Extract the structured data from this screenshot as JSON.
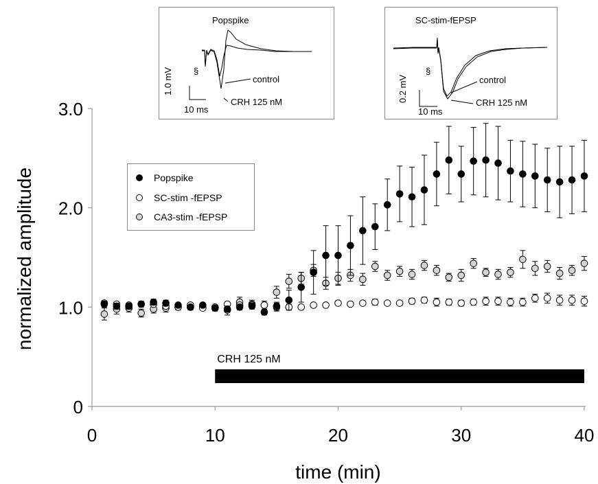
{
  "chart_data": {
    "type": "scatter",
    "ylabel": "normalized amplitude",
    "xlabel": "time (min)",
    "xlim": [
      0,
      40
    ],
    "ylim": [
      0,
      3.0
    ],
    "x_ticks": [
      0,
      10,
      20,
      30,
      40
    ],
    "x_tick_labels": [
      "0",
      "10",
      "20",
      "30",
      "40"
    ],
    "y_ticks": [
      0,
      1.0,
      2.0,
      3.0
    ],
    "y_tick_labels": [
      "0",
      "1.0",
      "2.0",
      "3.0"
    ],
    "grid": false,
    "legend_position": "upper-left",
    "x": [
      1,
      2,
      3,
      4,
      5,
      6,
      7,
      8,
      9,
      10,
      11,
      12,
      13,
      14,
      15,
      16,
      17,
      18,
      19,
      20,
      21,
      22,
      23,
      24,
      25,
      26,
      27,
      28,
      29,
      30,
      31,
      32,
      33,
      34,
      35,
      36,
      37,
      38,
      39,
      40
    ],
    "series": [
      {
        "name": "Popspike",
        "fill": "#000000",
        "values": [
          1.03,
          1.01,
          1.01,
          1.03,
          1.05,
          1.04,
          1.02,
          1.0,
          1.02,
          0.99,
          0.98,
          1.0,
          1.01,
          0.95,
          1.01,
          1.07,
          1.2,
          1.35,
          1.52,
          1.52,
          1.62,
          1.77,
          1.81,
          2.03,
          2.14,
          2.11,
          2.18,
          2.34,
          2.48,
          2.34,
          2.47,
          2.48,
          2.45,
          2.37,
          2.34,
          2.32,
          2.28,
          2.26,
          2.28,
          2.32
        ],
        "errors": [
          0.03,
          0.03,
          0.03,
          0.03,
          0.03,
          0.03,
          0.02,
          0.02,
          0.02,
          0.02,
          0.03,
          0.03,
          0.03,
          0.03,
          0.04,
          0.1,
          0.15,
          0.22,
          0.3,
          0.3,
          0.3,
          0.34,
          0.23,
          0.26,
          0.28,
          0.3,
          0.35,
          0.32,
          0.34,
          0.28,
          0.34,
          0.37,
          0.37,
          0.31,
          0.33,
          0.32,
          0.32,
          0.36,
          0.34,
          0.36
        ]
      },
      {
        "name": "SC-stim -fEPSP",
        "fill": "#ffffff",
        "values": [
          1.04,
          1.03,
          1.02,
          1.03,
          1.03,
          1.01,
          1.0,
          1.02,
          0.99,
          1.0,
          1.03,
          1.02,
          1.02,
          1.02,
          1.0,
          1.0,
          1.0,
          1.02,
          1.02,
          1.04,
          1.03,
          1.04,
          1.05,
          1.04,
          1.04,
          1.06,
          1.07,
          1.05,
          1.05,
          1.04,
          1.05,
          1.06,
          1.06,
          1.05,
          1.05,
          1.09,
          1.09,
          1.07,
          1.07,
          1.06
        ],
        "errors": [
          0.02,
          0.02,
          0.02,
          0.02,
          0.02,
          0.02,
          0.02,
          0.02,
          0.02,
          0.02,
          0.02,
          0.02,
          0.02,
          0.02,
          0.04,
          0.03,
          0.02,
          0.02,
          0.02,
          0.02,
          0.02,
          0.02,
          0.03,
          0.02,
          0.02,
          0.03,
          0.03,
          0.04,
          0.03,
          0.03,
          0.03,
          0.04,
          0.04,
          0.04,
          0.04,
          0.04,
          0.05,
          0.05,
          0.05,
          0.05
        ]
      },
      {
        "name": "CA3-stim -fEPSP",
        "fill": "#d4d4d4",
        "values": [
          0.93,
          0.98,
          0.99,
          0.94,
          0.98,
          0.99,
          1.0,
          1.0,
          1.0,
          0.99,
          0.97,
          1.05,
          1.03,
          1.02,
          1.15,
          1.26,
          1.29,
          1.37,
          1.24,
          1.29,
          1.32,
          1.28,
          1.41,
          1.32,
          1.36,
          1.33,
          1.42,
          1.37,
          1.3,
          1.32,
          1.44,
          1.35,
          1.33,
          1.35,
          1.48,
          1.39,
          1.41,
          1.34,
          1.37,
          1.44
        ],
        "errors": [
          0.06,
          0.05,
          0.04,
          0.04,
          0.04,
          0.04,
          0.03,
          0.03,
          0.03,
          0.03,
          0.05,
          0.05,
          0.04,
          0.04,
          0.06,
          0.07,
          0.06,
          0.06,
          0.06,
          0.06,
          0.06,
          0.06,
          0.05,
          0.05,
          0.05,
          0.05,
          0.05,
          0.05,
          0.04,
          0.06,
          0.05,
          0.04,
          0.05,
          0.05,
          0.09,
          0.07,
          0.06,
          0.06,
          0.05,
          0.07
        ]
      }
    ],
    "bar": {
      "label": "CRH 125 nM",
      "from": 10,
      "to": 40
    }
  },
  "insets": [
    {
      "title": "Popspike",
      "section_mark": "§",
      "label_a": "control",
      "label_b": "CRH 125 nM",
      "v_scale": "1.0 mV",
      "t_scale": "10 ms"
    },
    {
      "title": "SC-stim-fEPSP",
      "section_mark": "§",
      "label_a": "control",
      "label_b": "CRH 125 nM",
      "v_scale": "0.2 mV",
      "t_scale": "10 ms"
    }
  ]
}
